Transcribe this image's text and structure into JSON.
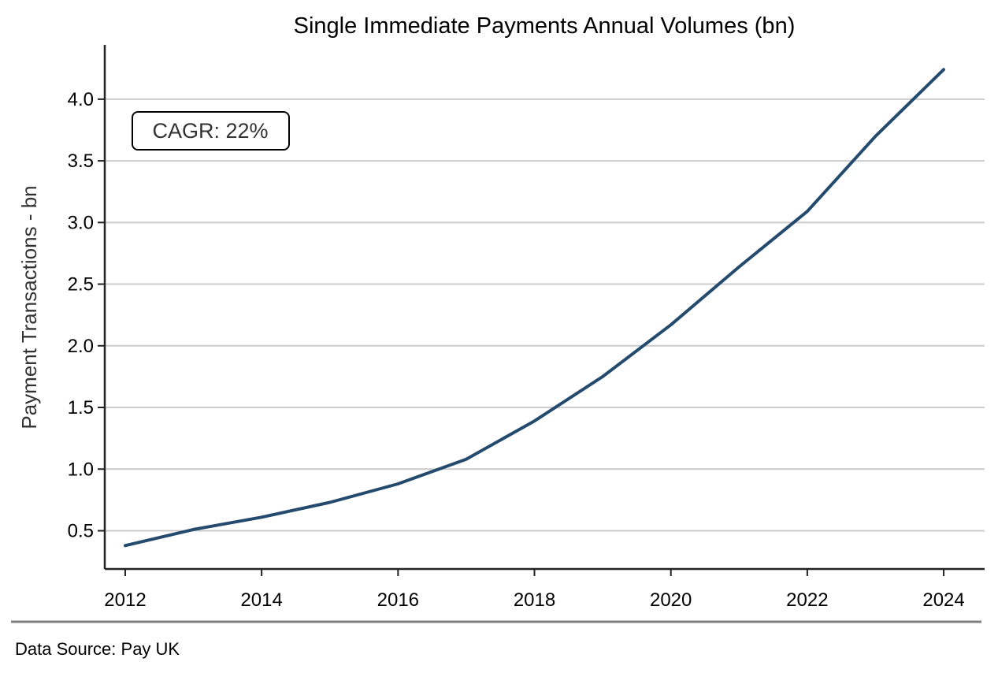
{
  "chart_data": {
    "type": "line",
    "title": "Single Immediate Payments Annual Volumes (bn)",
    "xlabel": "",
    "ylabel": "Payment Transactions - bn",
    "x": [
      2012,
      2013,
      2014,
      2015,
      2016,
      2017,
      2018,
      2019,
      2020,
      2021,
      2022,
      2023,
      2024
    ],
    "series": [
      {
        "values": [
          0.38,
          0.51,
          0.61,
          0.73,
          0.88,
          1.08,
          1.39,
          1.75,
          2.17,
          2.64,
          3.09,
          3.7,
          4.24
        ],
        "color": "#244b6e"
      }
    ],
    "xlim": [
      2011.7,
      2024.6
    ],
    "ylim": [
      0.19,
      4.44
    ],
    "xticks": [
      "2012",
      "2014",
      "2016",
      "2018",
      "2020",
      "2022",
      "2024"
    ],
    "yticks": [
      "0.5",
      "1.0",
      "1.5",
      "2.0",
      "2.5",
      "3.0",
      "3.5",
      "4.0"
    ],
    "grid": "horizontal",
    "annotation": "CAGR: 22%"
  },
  "footer": {
    "source": "Data Source: Pay UK"
  },
  "colors": {
    "line": "#244b6e",
    "grid": "#cccccc",
    "axis": "#222222",
    "footer_rule": "#808080"
  }
}
